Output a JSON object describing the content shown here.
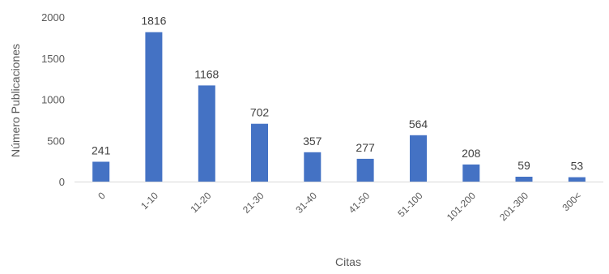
{
  "chart_data": {
    "type": "bar",
    "title": "",
    "xlabel": "Citas",
    "ylabel": "Número Publicaciones",
    "categories": [
      "0",
      "1-10",
      "11-20",
      "21-30",
      "31-40",
      "41-50",
      "51-100",
      "101-200",
      "201-300",
      "300<"
    ],
    "values": [
      241,
      1816,
      1168,
      702,
      357,
      277,
      564,
      208,
      59,
      53
    ],
    "ylim": [
      0,
      2000
    ],
    "yticks": [
      0,
      500,
      1000,
      1500,
      2000
    ],
    "grid": false,
    "legend": "none",
    "bar_color": "#4472C4",
    "axis_color": "#D9D9D9",
    "text_color": "#595959",
    "label_color": "#404040"
  }
}
